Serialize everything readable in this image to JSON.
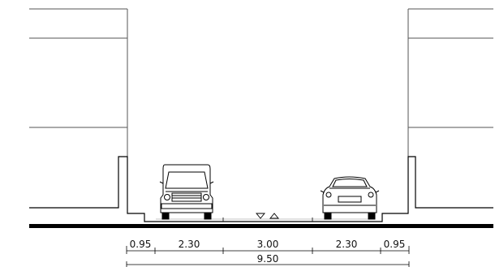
{
  "section": {
    "dimensions": {
      "segments": [
        "0.95",
        "2.30",
        "3.00",
        "2.30",
        "0.95"
      ],
      "total": "9.50"
    },
    "icons": [
      "van-icon",
      "car-icon",
      "road-axis-triangles-icon"
    ]
  }
}
